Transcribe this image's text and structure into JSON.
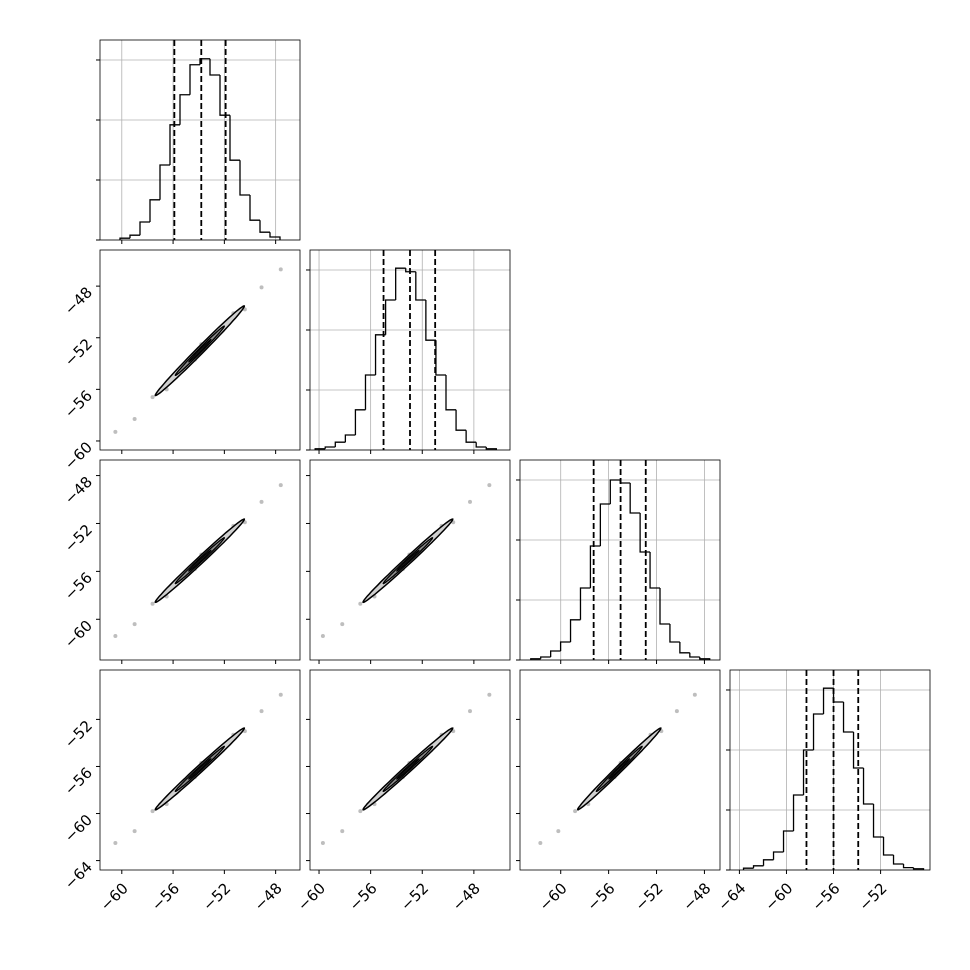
{
  "chart_data": {
    "type": "corner",
    "axes": [
      {
        "lim": [
          -61.7,
          -46.1
        ],
        "ticks": [
          {
            "value": -60,
            "label": "−60"
          },
          {
            "value": -56,
            "label": "−56"
          },
          {
            "value": -52,
            "label": "−52"
          },
          {
            "value": -48,
            "label": "−48"
          }
        ]
      },
      {
        "lim": [
          -60.7,
          -45.2
        ],
        "ticks": [
          {
            "value": -60,
            "label": "−60"
          },
          {
            "value": -56,
            "label": "−56"
          },
          {
            "value": -52,
            "label": "−52"
          },
          {
            "value": -48,
            "label": "−48"
          }
        ]
      },
      {
        "lim": [
          -63.4,
          -46.7
        ],
        "ticks": [
          {
            "value": -60,
            "label": "−60"
          },
          {
            "value": -56,
            "label": "−56"
          },
          {
            "value": -52,
            "label": "−52"
          },
          {
            "value": -48,
            "label": "−48"
          }
        ]
      },
      {
        "lim": [
          -64.8,
          -47.8
        ],
        "ticks": [
          {
            "value": -64,
            "label": "−64"
          },
          {
            "value": -60,
            "label": "−60"
          },
          {
            "value": -56,
            "label": "−56"
          },
          {
            "value": -52,
            "label": "−52"
          }
        ]
      }
    ],
    "histograms": [
      {
        "type": "histogram",
        "grid": true,
        "color": "#000000",
        "ylim": [
          0,
          3.333
        ],
        "yticks": [
          0,
          1,
          2,
          3
        ],
        "bins": [
          -60.14,
          -59.36,
          -58.58,
          -57.8,
          -57.02,
          -56.24,
          -55.46,
          -54.68,
          -53.9,
          -53.12,
          -52.34,
          -51.56,
          -50.78,
          -50.0,
          -49.22,
          -48.44,
          -47.66
        ],
        "counts": [
          0.03,
          0.08,
          0.3,
          0.67,
          1.25,
          1.92,
          2.42,
          2.92,
          3.02,
          2.75,
          2.08,
          1.33,
          0.75,
          0.33,
          0.13,
          0.05
        ],
        "quantiles": [
          -55.9,
          -53.8,
          -51.9
        ]
      },
      {
        "type": "histogram",
        "grid": true,
        "color": "#000000",
        "ylim": [
          0,
          3.333
        ],
        "yticks": [
          0,
          1,
          2,
          3
        ],
        "bins": [
          -60.3,
          -59.52,
          -58.74,
          -57.96,
          -57.18,
          -56.4,
          -55.62,
          -54.84,
          -54.06,
          -53.28,
          -52.5,
          -51.72,
          -50.94,
          -50.16,
          -49.38,
          -48.6,
          -47.82,
          -47.04,
          -46.26
        ],
        "counts": [
          0.02,
          0.05,
          0.13,
          0.25,
          0.67,
          1.25,
          1.92,
          2.5,
          3.03,
          2.97,
          2.5,
          1.83,
          1.25,
          0.67,
          0.33,
          0.13,
          0.05,
          0.02
        ],
        "quantiles": [
          -55.0,
          -52.95,
          -51.0
        ]
      },
      {
        "type": "histogram",
        "grid": true,
        "color": "#000000",
        "ylim": [
          0,
          3.333
        ],
        "yticks": [
          0,
          1,
          2,
          3
        ],
        "bins": [
          -62.5,
          -61.67,
          -60.84,
          -60.01,
          -59.18,
          -58.35,
          -57.52,
          -56.69,
          -55.86,
          -55.03,
          -54.2,
          -53.37,
          -52.54,
          -51.71,
          -50.88,
          -50.05,
          -49.22,
          -48.39,
          -47.56
        ],
        "counts": [
          0.02,
          0.05,
          0.15,
          0.3,
          0.67,
          1.2,
          1.9,
          2.6,
          3.0,
          2.95,
          2.45,
          1.8,
          1.2,
          0.6,
          0.3,
          0.12,
          0.05,
          0.02
        ],
        "quantiles": [
          -57.25,
          -55.0,
          -52.9
        ]
      },
      {
        "type": "histogram",
        "grid": true,
        "color": "#000000",
        "ylim": [
          0,
          3.333
        ],
        "yticks": [
          0,
          1,
          2,
          3
        ],
        "bins": [
          -63.65,
          -62.8,
          -61.95,
          -61.1,
          -60.25,
          -59.4,
          -58.55,
          -57.7,
          -56.85,
          -56.0,
          -55.15,
          -54.3,
          -53.45,
          -52.6,
          -51.75,
          -50.9,
          -50.05,
          -49.2,
          -48.35
        ],
        "counts": [
          0.03,
          0.07,
          0.17,
          0.3,
          0.65,
          1.25,
          2.0,
          2.6,
          3.03,
          2.8,
          2.3,
          1.7,
          1.1,
          0.55,
          0.25,
          0.1,
          0.04,
          0.02
        ],
        "quantiles": [
          -58.3,
          -56.0,
          -53.9
        ]
      }
    ],
    "scatters": [
      {
        "type": "scatter",
        "color": "#444444",
        "x": [
          -60.5,
          -59.0,
          -57.6,
          -56.5,
          -55.6,
          -54.9,
          -54.3,
          -53.8,
          -53.3,
          -52.7,
          -52.1,
          -51.3,
          -50.4,
          -49.1,
          -47.6
        ],
        "y": [
          -59.3,
          -58.3,
          -56.6,
          -56.0,
          -54.5,
          -54.0,
          -53.7,
          -52.5,
          -52.5,
          -51.6,
          -51.4,
          -50.1,
          -49.8,
          -48.1,
          -46.7
        ]
      },
      {
        "type": "scatter",
        "color": "#444444",
        "x": [
          -60.5,
          -59.0,
          -57.6,
          -56.5,
          -55.6,
          -54.9,
          -54.3,
          -53.8,
          -53.3,
          -52.7,
          -52.1,
          -51.3,
          -50.4,
          -49.1,
          -47.6
        ],
        "y": [
          -61.4,
          -60.4,
          -58.7,
          -58.1,
          -56.6,
          -56.1,
          -55.8,
          -54.6,
          -54.6,
          -53.7,
          -53.5,
          -52.2,
          -51.9,
          -50.2,
          -48.8
        ]
      },
      {
        "type": "scatter",
        "color": "#444444",
        "x": [
          -59.7,
          -58.2,
          -56.8,
          -55.7,
          -54.8,
          -54.1,
          -53.5,
          -53.0,
          -52.5,
          -51.9,
          -51.3,
          -50.5,
          -49.6,
          -48.3,
          -46.8
        ],
        "y": [
          -61.4,
          -60.4,
          -58.7,
          -58.1,
          -56.6,
          -56.1,
          -55.8,
          -54.6,
          -54.6,
          -53.7,
          -53.5,
          -52.2,
          -51.9,
          -50.2,
          -48.8
        ]
      },
      {
        "type": "scatter",
        "color": "#444444",
        "x": [
          -60.5,
          -59.0,
          -57.6,
          -56.5,
          -55.6,
          -54.9,
          -54.3,
          -53.8,
          -53.3,
          -52.7,
          -52.1,
          -51.3,
          -50.4,
          -49.1,
          -47.6
        ],
        "y": [
          -62.5,
          -61.5,
          -59.8,
          -59.2,
          -57.7,
          -57.2,
          -56.9,
          -55.7,
          -55.7,
          -54.8,
          -54.6,
          -53.3,
          -53.0,
          -51.3,
          -49.9
        ]
      },
      {
        "type": "scatter",
        "color": "#444444",
        "x": [
          -59.7,
          -58.2,
          -56.8,
          -55.7,
          -54.8,
          -54.1,
          -53.5,
          -53.0,
          -52.5,
          -51.9,
          -51.3,
          -50.5,
          -49.6,
          -48.3,
          -46.8
        ],
        "y": [
          -62.5,
          -61.5,
          -59.8,
          -59.2,
          -57.7,
          -57.2,
          -56.9,
          -55.7,
          -55.7,
          -54.8,
          -54.6,
          -53.3,
          -53.0,
          -51.3,
          -49.9
        ]
      },
      {
        "type": "scatter",
        "color": "#444444",
        "x": [
          -61.7,
          -60.2,
          -58.8,
          -57.7,
          -56.8,
          -56.1,
          -55.5,
          -55.0,
          -54.5,
          -53.9,
          -53.3,
          -52.5,
          -51.6,
          -50.3,
          -48.8
        ],
        "y": [
          -62.5,
          -61.5,
          -59.8,
          -59.2,
          -57.7,
          -57.2,
          -56.9,
          -55.7,
          -55.7,
          -54.8,
          -54.6,
          -53.3,
          -53.0,
          -51.3,
          -49.9
        ]
      }
    ]
  }
}
